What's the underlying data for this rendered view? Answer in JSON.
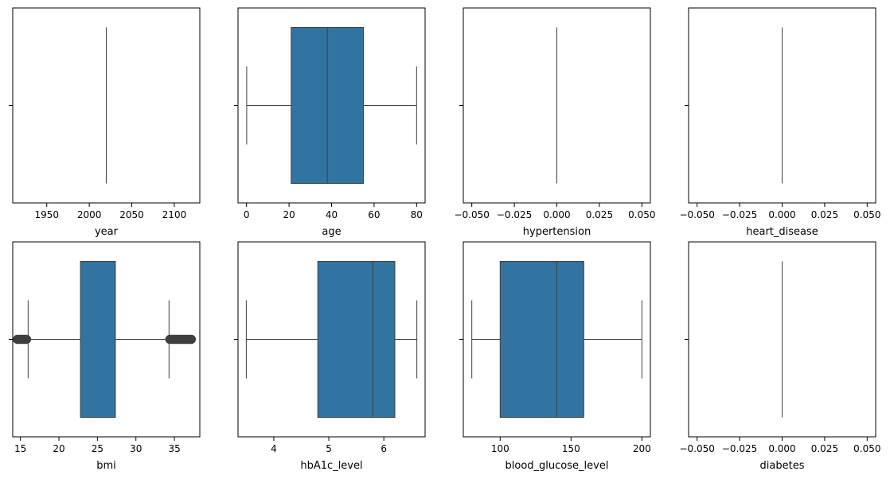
{
  "chart_data": [
    {
      "type": "box",
      "xlabel": "year",
      "xlim": [
        1910,
        2130
      ],
      "ticks": [
        1950,
        2000,
        2050,
        2100
      ],
      "tick_labels": [
        "1950",
        "2000",
        "2050",
        "2100"
      ],
      "stats": {
        "whislo": 2020,
        "q1": 2020,
        "med": 2020,
        "q3": 2020,
        "whishi": 2020
      },
      "fliers": [],
      "color": "#3274a1"
    },
    {
      "type": "box",
      "xlabel": "age",
      "xlim": [
        -4,
        84
      ],
      "ticks": [
        0,
        20,
        40,
        60,
        80
      ],
      "tick_labels": [
        "0",
        "20",
        "40",
        "60",
        "80"
      ],
      "stats": {
        "whislo": 0.08,
        "q1": 21,
        "med": 38,
        "q3": 55,
        "whishi": 80
      },
      "fliers": [],
      "color": "#3274a1"
    },
    {
      "type": "box",
      "xlabel": "hypertension",
      "xlim": [
        -0.055,
        0.055
      ],
      "ticks": [
        -0.05,
        -0.025,
        0.0,
        0.025,
        0.05
      ],
      "tick_labels": [
        "−0.050",
        "−0.025",
        "0.000",
        "0.025",
        "0.050"
      ],
      "stats": {
        "whislo": 0,
        "q1": 0,
        "med": 0,
        "q3": 0,
        "whishi": 0
      },
      "fliers": [],
      "color": "#3274a1"
    },
    {
      "type": "box",
      "xlabel": "heart_disease",
      "xlim": [
        -0.055,
        0.055
      ],
      "ticks": [
        -0.05,
        -0.025,
        0.0,
        0.025,
        0.05
      ],
      "tick_labels": [
        "−0.050",
        "−0.025",
        "0.000",
        "0.025",
        "0.050"
      ],
      "stats": {
        "whislo": 0,
        "q1": 0,
        "med": 0,
        "q3": 0,
        "whishi": 0
      },
      "fliers": [],
      "color": "#3274a1"
    },
    {
      "type": "box",
      "xlabel": "bmi",
      "xlim": [
        14.0,
        38.3
      ],
      "ticks": [
        15,
        20,
        25,
        30,
        35
      ],
      "tick_labels": [
        "15",
        "20",
        "25",
        "30",
        "35"
      ],
      "stats": {
        "whislo": 16.0,
        "q1": 22.8,
        "med": 27.32,
        "q3": 27.32,
        "whishi": 34.3
      },
      "fliers": [
        14.6,
        14.8,
        15.0,
        15.2,
        15.4,
        15.6,
        15.8,
        34.4,
        34.6,
        34.8,
        35.0,
        35.2,
        35.4,
        35.6,
        35.8,
        36.0,
        36.2,
        36.4,
        36.6,
        36.8,
        37.0,
        37.2
      ],
      "color": "#3274a1"
    },
    {
      "type": "box",
      "xlabel": "hbA1c_level",
      "xlim": [
        3.35,
        6.75
      ],
      "ticks": [
        4,
        5,
        6
      ],
      "tick_labels": [
        "4",
        "5",
        "6"
      ],
      "stats": {
        "whislo": 3.5,
        "q1": 4.8,
        "med": 5.8,
        "q3": 6.2,
        "whishi": 6.6
      },
      "fliers": [],
      "color": "#3274a1"
    },
    {
      "type": "box",
      "xlabel": "blood_glucose_level",
      "xlim": [
        74,
        206
      ],
      "ticks": [
        100,
        150,
        200
      ],
      "tick_labels": [
        "100",
        "150",
        "200"
      ],
      "stats": {
        "whislo": 80,
        "q1": 100,
        "med": 140,
        "q3": 159,
        "whishi": 200
      },
      "fliers": [],
      "color": "#3274a1"
    },
    {
      "type": "box",
      "xlabel": "diabetes",
      "xlim": [
        -0.055,
        0.055
      ],
      "ticks": [
        -0.05,
        -0.025,
        0.0,
        0.025,
        0.05
      ],
      "tick_labels": [
        "−0.050",
        "−0.025",
        "0.000",
        "0.025",
        "0.050"
      ],
      "stats": {
        "whislo": 0,
        "q1": 0,
        "med": 0,
        "q3": 0,
        "whishi": 0
      },
      "fliers": [],
      "color": "#3274a1"
    }
  ]
}
